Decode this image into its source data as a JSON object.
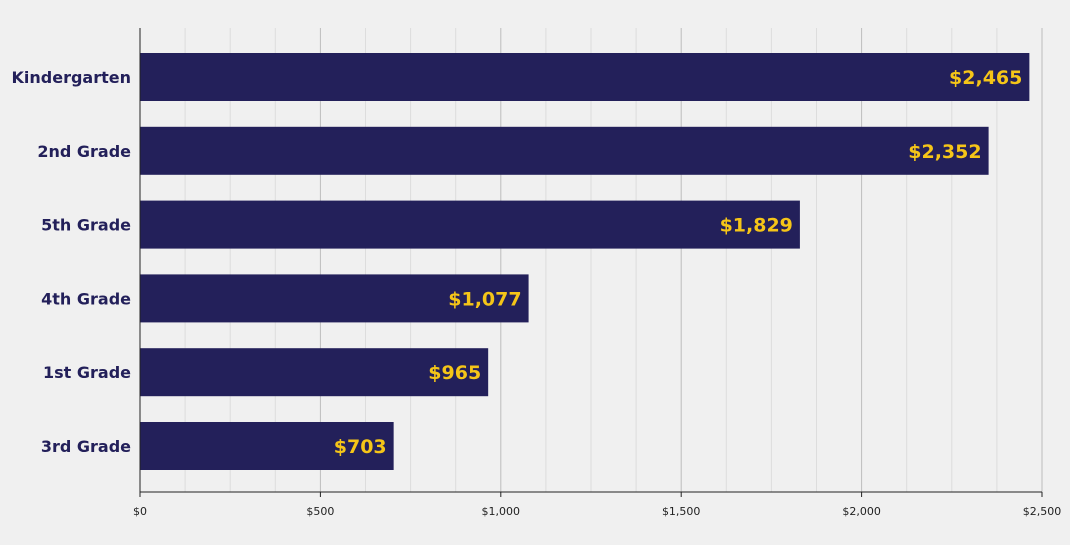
{
  "chart_data": {
    "type": "bar",
    "orientation": "horizontal",
    "categories": [
      "Kindergarten",
      "2nd Grade",
      "5th Grade",
      "4th Grade",
      "1st Grade",
      "3rd Grade"
    ],
    "values": [
      2465,
      2352,
      1829,
      1077,
      965,
      703
    ],
    "data_labels": [
      "$2,465",
      "$2,352",
      "$1,829",
      "$1,077",
      "$965",
      "$703"
    ],
    "title": "",
    "xlabel": "",
    "ylabel": "",
    "xlim": [
      0,
      2500
    ],
    "x_ticks": [
      0,
      500,
      1000,
      1500,
      2000,
      2500
    ],
    "x_tick_labels": [
      "$0",
      "$500",
      "$1,000",
      "$1,500",
      "$2,000",
      "$2,500"
    ],
    "minor_grid_step": 125,
    "grid": true,
    "legend": "none"
  },
  "colors": {
    "background": "#f0f0f0",
    "bar": "#23205a",
    "data_label": "#f5c518",
    "category_label": "#23205a",
    "major_grid": "#bdbdbd",
    "minor_grid": "#dddddd",
    "axis": "#222222"
  }
}
